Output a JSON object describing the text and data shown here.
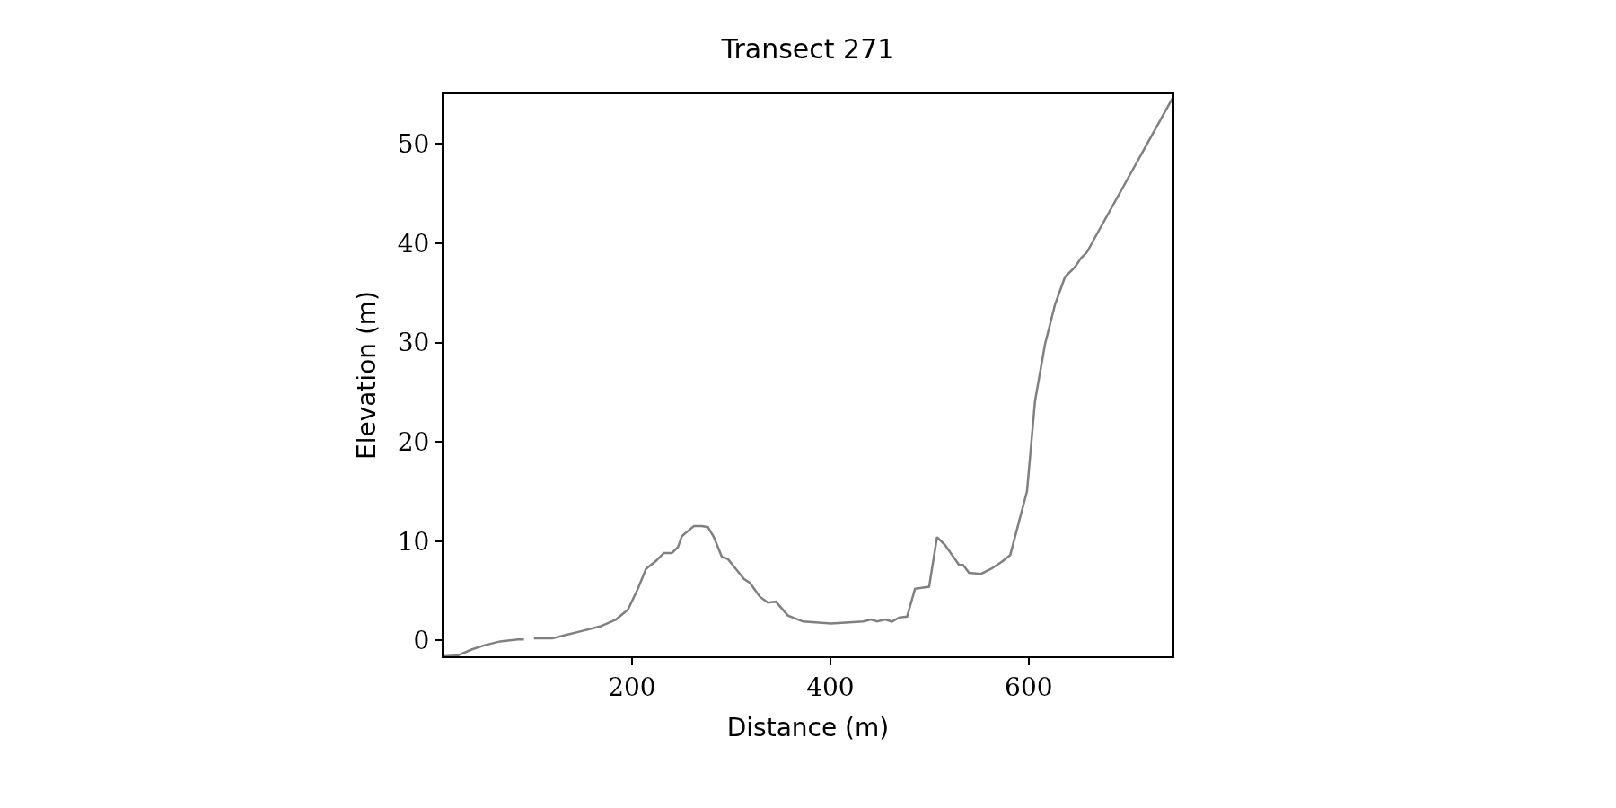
{
  "chart_data": {
    "type": "line",
    "title": "Transect 271",
    "xlabel": "Distance (m)",
    "ylabel": "Elevation (m)",
    "xlim": [
      10,
      745
    ],
    "ylim": [
      -1.6,
      55
    ],
    "xticks": [
      200,
      400,
      600
    ],
    "yticks": [
      0,
      10,
      20,
      30,
      40,
      50
    ],
    "grid": false,
    "marker": "none",
    "line_style": "solid",
    "series": [
      {
        "color": "#808080",
        "x": [
          10.6,
          24.7,
          38.8,
          50.9,
          67,
          85.1,
          91.1,
          96,
          101.2,
          119.4,
          131.5,
          147.6,
          167.8,
          183.9,
          196,
          206,
          214.1,
          224.2,
          232.2,
          240.3,
          246.4,
          250.4,
          256.4,
          262.5,
          270.5,
          276.6,
          282.6,
          290.7,
          296.7,
          304.8,
          312.9,
          318.9,
          329,
          337.1,
          345.1,
          357.2,
          372.6,
          400.8,
          433.1,
          441.1,
          447.2,
          455.2,
          462.1,
          469.3,
          477.4,
          485.4,
          499.6,
          507.6,
          515.7,
          529.8,
          533.8,
          539.9,
          552,
          562,
          574.1,
          581.4,
          598.3,
          606.4,
          616.4,
          626.5,
          636.6,
          646.7,
          652.7,
          658.8,
          670.9,
          745
        ],
        "values": [
          -1.6,
          -1.5,
          -0.9,
          -0.5,
          -0.1,
          0.1,
          0.1,
          null,
          0.2,
          0.2,
          0.5,
          0.9,
          1.4,
          2.1,
          3.1,
          5.2,
          7.2,
          8.0,
          8.8,
          8.8,
          9.4,
          10.5,
          11.0,
          11.5,
          11.5,
          11.4,
          10.4,
          8.4,
          8.2,
          7.2,
          6.2,
          5.8,
          4.4,
          3.8,
          3.9,
          2.5,
          1.9,
          1.7,
          1.9,
          2.1,
          1.9,
          2.1,
          1.9,
          2.3,
          2.4,
          5.2,
          5.4,
          10.4,
          9.6,
          7.6,
          7.6,
          6.8,
          6.7,
          7.2,
          8.0,
          8.6,
          15.0,
          24.1,
          29.8,
          33.8,
          36.6,
          37.6,
          38.5,
          39.1,
          41.3,
          54.6
        ]
      }
    ]
  }
}
